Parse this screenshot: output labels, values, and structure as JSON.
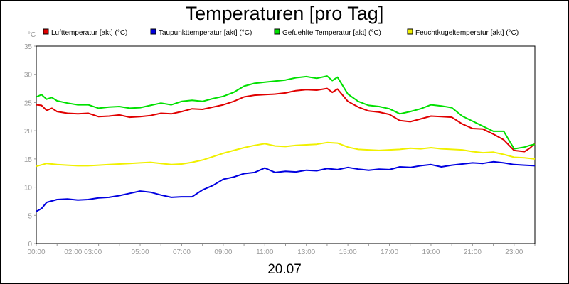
{
  "chart_data": {
    "type": "line",
    "title": "Temperaturen [pro Tag]",
    "ylabel": "°C",
    "xlabel": "20.07",
    "ylim": [
      0,
      35
    ],
    "yticks": [
      0,
      5,
      10,
      15,
      20,
      25,
      30,
      35
    ],
    "xlim": [
      0,
      24
    ],
    "xticks": [
      {
        "x": 0,
        "label": "00:00"
      },
      {
        "x": 2.25,
        "label": "02:00 03:00"
      },
      {
        "x": 5,
        "label": "05:00"
      },
      {
        "x": 7,
        "label": "07:00"
      },
      {
        "x": 9,
        "label": "09:00"
      },
      {
        "x": 11,
        "label": "11:00"
      },
      {
        "x": 13,
        "label": "13:00"
      },
      {
        "x": 15,
        "label": "15:00"
      },
      {
        "x": 17,
        "label": "17:00"
      },
      {
        "x": 19,
        "label": "19:00"
      },
      {
        "x": 21,
        "label": "21:00"
      },
      {
        "x": 23,
        "label": "23:00"
      }
    ],
    "grid": true,
    "legend_position": "top",
    "series": [
      {
        "name": "Lufttemperatur [akt] (°C)",
        "color": "#e00000",
        "x": [
          0,
          0.25,
          0.5,
          0.75,
          1,
          1.5,
          2,
          2.5,
          3,
          3.5,
          4,
          4.5,
          5,
          5.5,
          6,
          6.5,
          7,
          7.5,
          8,
          8.5,
          9,
          9.5,
          10,
          10.5,
          11,
          11.5,
          12,
          12.5,
          13,
          13.5,
          14,
          14.25,
          14.5,
          15,
          15.5,
          16,
          16.5,
          17,
          17.5,
          18,
          18.5,
          19,
          19.5,
          20,
          20.5,
          21,
          21.5,
          22,
          22.5,
          23,
          23.5,
          23.75,
          24
        ],
        "values": [
          24.6,
          24.5,
          23.6,
          24.0,
          23.4,
          23.1,
          23.0,
          23.1,
          22.5,
          22.6,
          22.8,
          22.4,
          22.5,
          22.7,
          23.1,
          23.0,
          23.4,
          23.9,
          23.8,
          24.2,
          24.6,
          25.2,
          26.0,
          26.3,
          26.4,
          26.5,
          26.7,
          27.1,
          27.3,
          27.2,
          27.5,
          26.8,
          27.4,
          25.2,
          24.2,
          23.5,
          23.3,
          22.9,
          21.8,
          21.6,
          22.1,
          22.6,
          22.5,
          22.4,
          21.2,
          20.4,
          20.3,
          19.4,
          18.4,
          16.5,
          16.3,
          16.9,
          17.7
        ]
      },
      {
        "name": "Taupunkttemperatur [akt] (°C)",
        "color": "#0000e0",
        "x": [
          0,
          0.25,
          0.5,
          1,
          1.5,
          2,
          2.5,
          3,
          3.5,
          4,
          4.5,
          5,
          5.5,
          6,
          6.5,
          7,
          7.5,
          8,
          8.5,
          9,
          9.5,
          10,
          10.5,
          11,
          11.5,
          12,
          12.5,
          13,
          13.5,
          14,
          14.5,
          15,
          15.5,
          16,
          16.5,
          17,
          17.5,
          18,
          18.5,
          19,
          19.5,
          20,
          20.5,
          21,
          21.5,
          22,
          22.5,
          23,
          23.5,
          24
        ],
        "values": [
          5.7,
          6.2,
          7.3,
          7.8,
          7.9,
          7.7,
          7.8,
          8.1,
          8.2,
          8.5,
          8.9,
          9.3,
          9.1,
          8.6,
          8.2,
          8.3,
          8.3,
          9.5,
          10.3,
          11.4,
          11.8,
          12.4,
          12.6,
          13.4,
          12.6,
          12.8,
          12.7,
          13.0,
          12.9,
          13.3,
          13.1,
          13.5,
          13.2,
          13.0,
          13.2,
          13.1,
          13.6,
          13.5,
          13.8,
          14.0,
          13.6,
          13.9,
          14.1,
          14.3,
          14.2,
          14.5,
          14.3,
          14.0,
          13.9,
          13.8
        ]
      },
      {
        "name": "Gefuehlte Temperatur [akt] (°C)",
        "color": "#00e000",
        "x": [
          0,
          0.25,
          0.5,
          0.75,
          1,
          1.5,
          2,
          2.5,
          3,
          3.5,
          4,
          4.5,
          5,
          5.5,
          6,
          6.5,
          7,
          7.5,
          8,
          8.5,
          9,
          9.5,
          10,
          10.5,
          11,
          11.5,
          12,
          12.5,
          13,
          13.5,
          14,
          14.25,
          14.5,
          15,
          15.5,
          16,
          16.5,
          17,
          17.5,
          18,
          18.5,
          19,
          19.5,
          20,
          20.5,
          21,
          21.5,
          22,
          22.5,
          23,
          23.5,
          23.75,
          24
        ],
        "values": [
          26.0,
          26.4,
          25.6,
          25.9,
          25.3,
          24.9,
          24.6,
          24.6,
          24.0,
          24.2,
          24.3,
          24.0,
          24.1,
          24.5,
          24.9,
          24.6,
          25.2,
          25.4,
          25.2,
          25.7,
          26.1,
          26.8,
          27.9,
          28.4,
          28.6,
          28.8,
          29.0,
          29.4,
          29.6,
          29.3,
          29.7,
          28.9,
          29.5,
          26.5,
          25.2,
          24.5,
          24.3,
          23.9,
          23.0,
          23.4,
          23.9,
          24.6,
          24.4,
          24.1,
          22.6,
          21.7,
          20.8,
          19.9,
          19.9,
          16.8,
          17.1,
          17.4,
          17.6
        ]
      },
      {
        "name": "Feuchtkugeltemperatur [akt] (°C)",
        "color": "#f0f000",
        "x": [
          0,
          0.5,
          1,
          1.5,
          2,
          2.5,
          3,
          3.5,
          4,
          4.5,
          5,
          5.5,
          6,
          6.5,
          7,
          7.5,
          8,
          8.5,
          9,
          9.5,
          10,
          10.5,
          11,
          11.5,
          12,
          12.5,
          13,
          13.5,
          14,
          14.5,
          15,
          15.5,
          16,
          16.5,
          17,
          17.5,
          18,
          18.5,
          19,
          19.5,
          20,
          20.5,
          21,
          21.5,
          22,
          22.5,
          23,
          23.5,
          24
        ],
        "values": [
          13.7,
          14.2,
          14.0,
          13.9,
          13.8,
          13.8,
          13.9,
          14.0,
          14.1,
          14.2,
          14.3,
          14.4,
          14.2,
          14.0,
          14.1,
          14.4,
          14.8,
          15.4,
          16.0,
          16.5,
          17.0,
          17.4,
          17.7,
          17.3,
          17.2,
          17.4,
          17.5,
          17.6,
          17.9,
          17.8,
          17.1,
          16.7,
          16.6,
          16.5,
          16.6,
          16.7,
          16.9,
          16.8,
          17.0,
          16.8,
          16.7,
          16.6,
          16.3,
          16.1,
          16.2,
          15.8,
          15.3,
          15.2,
          15.0
        ]
      }
    ]
  }
}
